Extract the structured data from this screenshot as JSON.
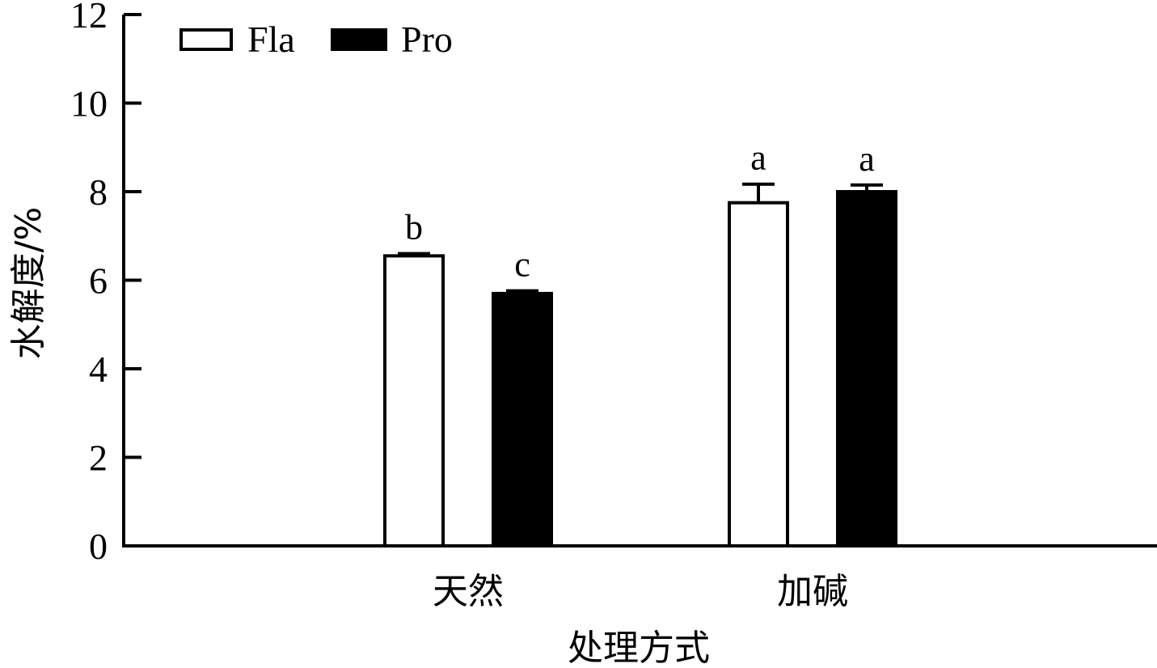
{
  "chart_data": {
    "type": "bar",
    "categories": [
      "天然",
      "加碱"
    ],
    "series": [
      {
        "name": "Fla",
        "values": [
          6.55,
          7.75
        ],
        "errors": [
          0.05,
          0.42
        ],
        "labels": [
          "b",
          "a"
        ],
        "color": "#ffffff"
      },
      {
        "name": "Pro",
        "values": [
          5.7,
          8.0
        ],
        "errors": [
          0.06,
          0.15
        ],
        "labels": [
          "c",
          "a"
        ],
        "color": "#000000"
      }
    ],
    "xlabel": "处理方式",
    "ylabel": "水解度/%",
    "ylim": [
      0,
      12
    ],
    "yticks": [
      "0",
      "2",
      "4",
      "6",
      "8",
      "10",
      "12"
    ],
    "legend_position": "top-left",
    "grid": false
  }
}
